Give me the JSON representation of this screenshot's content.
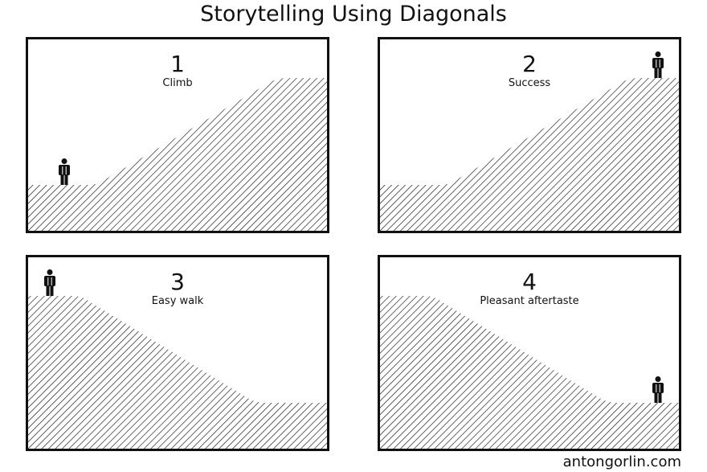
{
  "title": "Storytelling Using Diagonals",
  "panels": [
    {
      "number": "1",
      "caption": "Climb",
      "shape": "rising",
      "person_position": "bottom-left"
    },
    {
      "number": "2",
      "caption": "Success",
      "shape": "rising",
      "person_position": "top-right"
    },
    {
      "number": "3",
      "caption": "Easy walk",
      "shape": "falling",
      "person_position": "top-left"
    },
    {
      "number": "4",
      "caption": "Pleasant aftertaste",
      "shape": "falling",
      "person_position": "bottom-right"
    }
  ],
  "credit": "antongorlin.com",
  "colors": {
    "ink": "#111111",
    "background": "#ffffff"
  }
}
